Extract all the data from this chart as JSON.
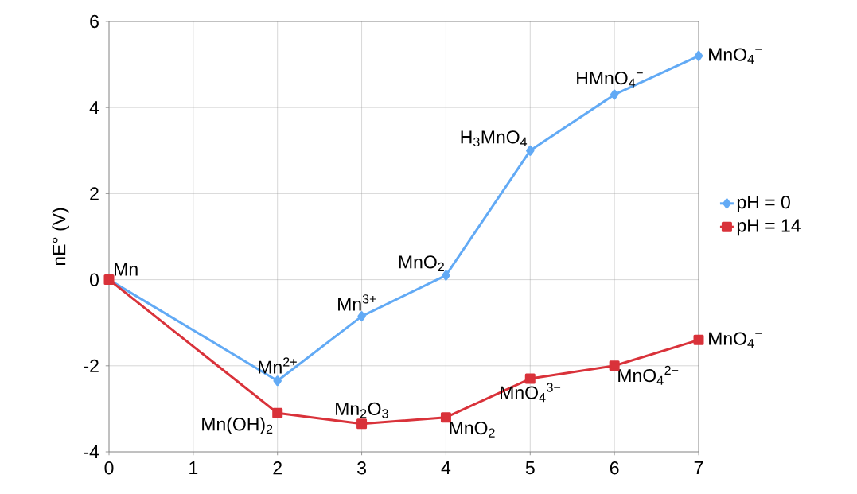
{
  "chart_data": {
    "type": "line",
    "ylabel": "nE° (V)",
    "x": [
      0,
      2,
      3,
      4,
      5,
      6,
      7
    ],
    "series": [
      {
        "name": "pH = 0",
        "color": "#62aaf5",
        "marker": "diamond",
        "values": [
          0,
          -2.35,
          -0.85,
          0.1,
          3.0,
          4.3,
          5.2
        ]
      },
      {
        "name": "pH = 14",
        "color": "#d9323a",
        "marker": "square",
        "values": [
          0,
          -3.1,
          -3.35,
          -3.2,
          -2.3,
          -2.0,
          -1.4
        ]
      }
    ],
    "xlim": [
      0,
      7
    ],
    "ylim": [
      -4,
      6
    ],
    "xticks": [
      0,
      1,
      2,
      3,
      4,
      5,
      6,
      7
    ],
    "yticks": [
      -4,
      -2,
      0,
      2,
      4,
      6
    ],
    "grid": true,
    "legend": "right",
    "annotations": [
      {
        "text": "Mn",
        "x": 0,
        "y": 0
      },
      {
        "text": "Mn$^{2+}$",
        "x": 2,
        "y": -2.35
      },
      {
        "text": "Mn$^{3+}$",
        "x": 3,
        "y": -0.85
      },
      {
        "text": "MnO$_{2}$",
        "x": 4,
        "y": 0.1
      },
      {
        "text": "H$_{3}$MnO$_{4}$",
        "x": 5,
        "y": 3.0
      },
      {
        "text": "HMnO$_{4}$$^{−}$",
        "x": 6,
        "y": 4.3
      },
      {
        "text": "MnO$_{4}$$^{−}$",
        "x": 7,
        "y": 5.2
      },
      {
        "text": "Mn(OH)$_{2}$",
        "x": 2,
        "y": -3.1
      },
      {
        "text": "Mn$_{2}$O$_{3}$",
        "x": 3,
        "y": -3.35
      },
      {
        "text": "MnO$_{2}$",
        "x": 4,
        "y": -3.2
      },
      {
        "text": "MnO$_{4}$$^{3−}$",
        "x": 5,
        "y": -2.3
      },
      {
        "text": "MnO$_{4}$$^{2−}$",
        "x": 6,
        "y": -2.0
      },
      {
        "text": "MnO$_{4}$$^{−}$",
        "x": 7,
        "y": -1.4
      }
    ]
  }
}
